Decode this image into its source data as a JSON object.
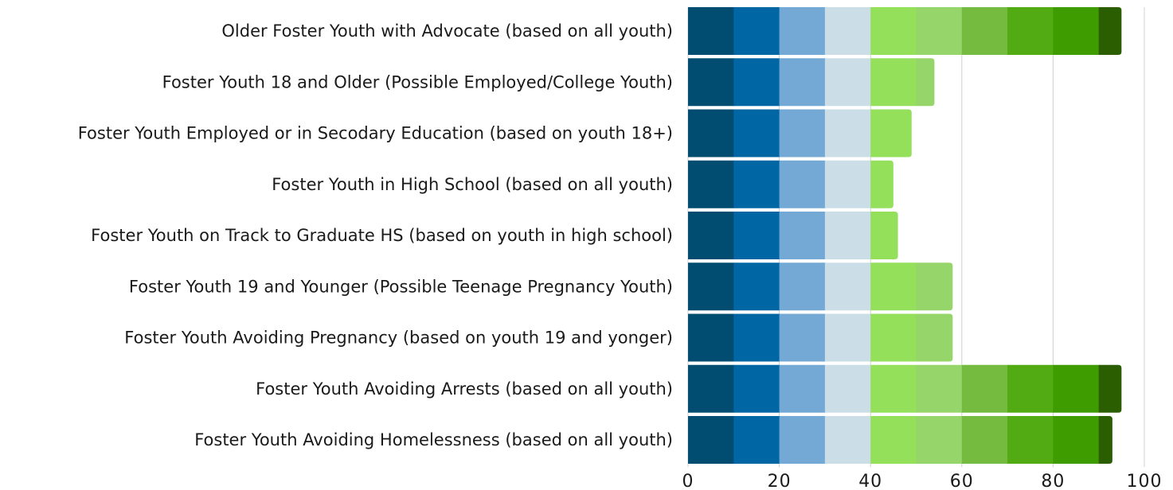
{
  "chart_data": {
    "type": "bar",
    "orientation": "horizontal",
    "stacked": true,
    "categories": [
      "Older Foster Youth with Advocate (based on all youth)",
      "Foster Youth 18 and Older (Possible Employed/College Youth)",
      "Foster Youth Employed or in Secodary Education (based on youth 18+)",
      "Foster Youth in High School (based on all youth)",
      "Foster Youth on Track to Graduate HS (based on youth in high school)",
      "Foster Youth 19 and Younger (Possible Teenage Pregnancy Youth)",
      "Foster Youth Avoiding Pregnancy (based on youth 19 and yonger)",
      "Foster Youth Avoiding Arrests (based on all youth)",
      "Foster Youth Avoiding Homelessness (based on all youth)"
    ],
    "values": [
      95,
      54,
      49,
      45,
      46,
      58,
      58,
      95,
      93
    ],
    "segment_size": 10,
    "segment_colors": [
      "#004d71",
      "#0066a4",
      "#74a9d6",
      "#cbdde7",
      "#94e05b",
      "#95d56a",
      "#74bb40",
      "#52ab12",
      "#3e9b00",
      "#2a5e00"
    ],
    "xlim": [
      0,
      100
    ],
    "xticks": [
      "0",
      "20",
      "40",
      "60",
      "80",
      "100"
    ],
    "grid": true,
    "gridline_color": "#d0d0d0"
  }
}
